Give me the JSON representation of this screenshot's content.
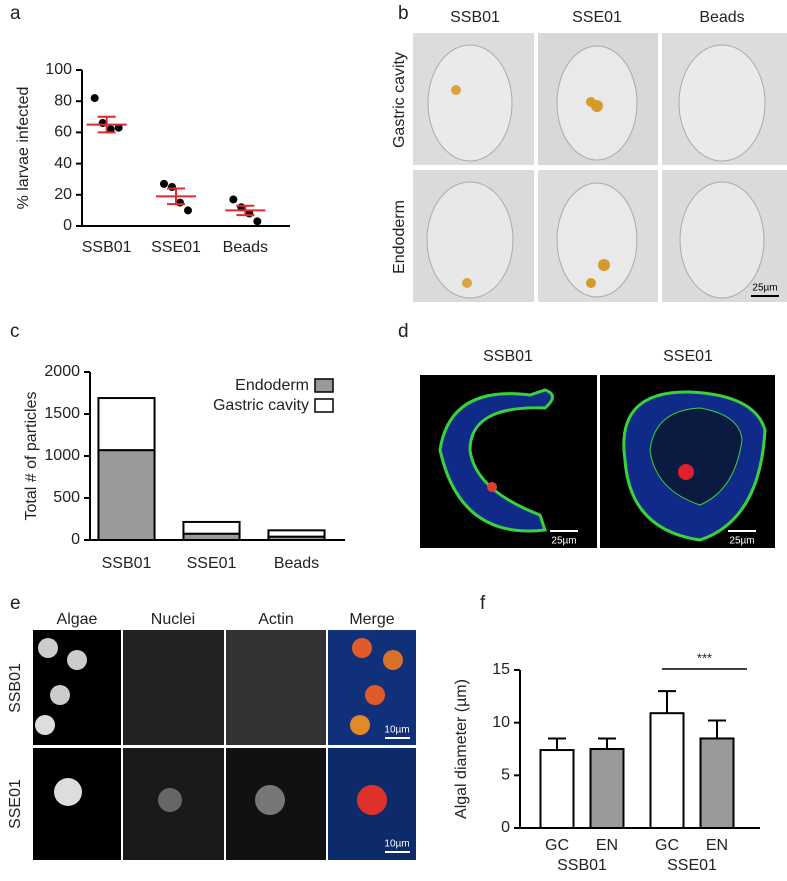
{
  "panel_labels": [
    "a",
    "b",
    "c",
    "d",
    "e",
    "f"
  ],
  "chart_data": [
    {
      "type": "dot",
      "ylabel": "% larvae infected",
      "categories": [
        "SSB01",
        "SSE01",
        "Beads"
      ],
      "points": [
        [
          82,
          66,
          62,
          63
        ],
        [
          27,
          25,
          15,
          10
        ],
        [
          17,
          12,
          8,
          3
        ]
      ],
      "means": [
        65,
        19,
        10
      ],
      "errors": [
        5,
        5,
        3
      ],
      "point_color": "#000000",
      "mean_color": "#e0282e",
      "ylim": [
        0,
        100
      ],
      "yticks": [
        0,
        20,
        40,
        60,
        80,
        100
      ]
    },
    {
      "type": "stacked-bar",
      "ylabel": "Total # of particles",
      "categories": [
        "SSB01",
        "SSE01",
        "Beads"
      ],
      "series": [
        {
          "name": "Endoderm",
          "color": "#999999",
          "values": [
            1070,
            75,
            40
          ]
        },
        {
          "name": "Gastric cavity",
          "color": "#ffffff",
          "values": [
            620,
            140,
            75
          ]
        }
      ],
      "legend": "top-right",
      "ylim": [
        0,
        2000
      ],
      "yticks": [
        0,
        500,
        1000,
        1500,
        2000
      ]
    },
    {
      "type": "bar",
      "ylabel": "Algal diameter (µm)",
      "categories": [
        "GC",
        "EN",
        "GC",
        "EN"
      ],
      "groups": [
        "SSB01",
        "SSE01"
      ],
      "values": [
        7.4,
        7.5,
        10.9,
        8.5
      ],
      "errors": [
        1.1,
        1.0,
        2.1,
        1.7
      ],
      "colors": [
        "#ffffff",
        "#999999",
        "#ffffff",
        "#999999"
      ],
      "annotation": "***",
      "ylim": [
        0,
        15
      ],
      "yticks": [
        0,
        5,
        10,
        15
      ]
    }
  ],
  "micrographs_b": {
    "columns": [
      "SSB01",
      "SSE01",
      "Beads"
    ],
    "rows": [
      "Gastric cavity",
      "Endoderm"
    ],
    "scale_bar": "25µm"
  },
  "micrographs_d": {
    "columns": [
      "SSB01",
      "SSE01"
    ],
    "scale_bar": "25µm"
  },
  "micrographs_e": {
    "columns": [
      "Algae",
      "Nuclei",
      "Actin",
      "Merge"
    ],
    "rows": [
      "SSB01",
      "SSE01"
    ],
    "scale_bar": "10µm"
  }
}
